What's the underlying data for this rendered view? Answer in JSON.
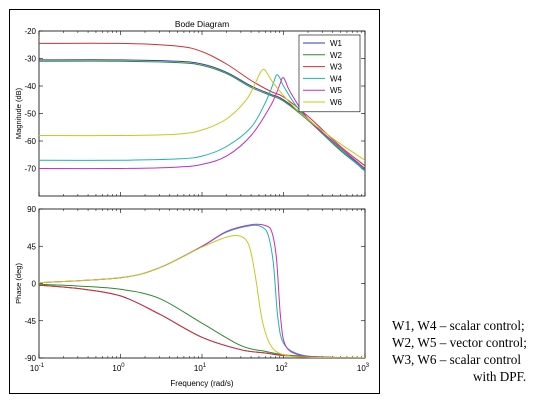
{
  "chart_data": [
    {
      "type": "line",
      "title": "Bode Diagram",
      "xlabel": "",
      "ylabel": "Magnitude (dB)",
      "xscale": "log",
      "xlim": [
        0.1,
        1000
      ],
      "ylim": [
        -80,
        -20
      ],
      "xticks": [
        0.1,
        1,
        10,
        100,
        1000
      ],
      "yticks": [
        -70,
        -60,
        -50,
        -40,
        -30,
        -20
      ],
      "ytick_labels": [
        "-70",
        "-60",
        "-50",
        "-40",
        "-30",
        "-20"
      ],
      "grid": false,
      "legend_position": "top-right",
      "legend": [
        "W1",
        "W2",
        "W3",
        "W4",
        "W5",
        "W6"
      ],
      "series": [
        {
          "name": "W1",
          "color": "#2b3fa8",
          "x": [
            0.1,
            1,
            5,
            10,
            20,
            40,
            70,
            100,
            200,
            500,
            1000
          ],
          "y": [
            -30.5,
            -30.5,
            -31,
            -32,
            -35,
            -40,
            -43,
            -45,
            -52,
            -63,
            -70
          ]
        },
        {
          "name": "W2",
          "color": "#2e8b2e",
          "x": [
            0.1,
            1,
            5,
            10,
            20,
            40,
            70,
            100,
            200,
            500,
            1000
          ],
          "y": [
            -31,
            -31,
            -31.5,
            -32.5,
            -35.5,
            -40.5,
            -43.5,
            -45.5,
            -52.5,
            -63.5,
            -70.5
          ]
        },
        {
          "name": "W3",
          "color": "#d43030",
          "x": [
            0.1,
            1,
            5,
            10,
            20,
            40,
            70,
            100,
            200,
            500,
            1000
          ],
          "y": [
            -24.5,
            -24.5,
            -25.5,
            -27.5,
            -32,
            -38,
            -42,
            -44,
            -51,
            -62,
            -69
          ]
        },
        {
          "name": "W4",
          "color": "#20b3b3",
          "x": [
            0.1,
            1,
            5,
            10,
            20,
            40,
            60,
            75,
            82,
            90,
            100,
            150,
            300,
            1000
          ],
          "y": [
            -67,
            -67,
            -66.5,
            -65.5,
            -62,
            -55,
            -46,
            -39,
            -36,
            -37,
            -40,
            -48,
            -57,
            -71
          ]
        },
        {
          "name": "W5",
          "color": "#c030c0",
          "x": [
            0.1,
            1,
            5,
            10,
            20,
            40,
            70,
            90,
            97,
            105,
            120,
            200,
            400,
            1000
          ],
          "y": [
            -70,
            -70,
            -69.5,
            -68.5,
            -65.5,
            -58,
            -47,
            -39.5,
            -37,
            -38,
            -42,
            -52,
            -60,
            -70
          ]
        },
        {
          "name": "W6",
          "color": "#c8c820",
          "x": [
            0.1,
            1,
            5,
            10,
            20,
            35,
            45,
            52,
            58,
            65,
            80,
            150,
            400,
            1000
          ],
          "y": [
            -58,
            -58,
            -57.5,
            -56,
            -52,
            -45,
            -39,
            -35,
            -34,
            -36,
            -40,
            -49,
            -59,
            -67
          ]
        }
      ]
    },
    {
      "type": "line",
      "xlabel": "Frequency  (rad/s)",
      "ylabel": "Phase (deg)",
      "xscale": "log",
      "xlim": [
        0.1,
        1000
      ],
      "ylim": [
        -90,
        90
      ],
      "xticks": [
        0.1,
        1,
        10,
        100,
        1000
      ],
      "yticks": [
        -90,
        -45,
        0,
        45,
        90
      ],
      "ytick_labels": [
        "-90",
        "-45",
        "0",
        "45",
        "90"
      ],
      "grid": false,
      "series": [
        {
          "name": "W1",
          "color": "#2b3fa8",
          "x": [
            0.1,
            0.3,
            1,
            3,
            10,
            30,
            60,
            100,
            200,
            500,
            1000
          ],
          "y": [
            -2,
            -6,
            -15,
            -37,
            -65,
            -80,
            -84,
            -87,
            -88.5,
            -89.5,
            -90
          ]
        },
        {
          "name": "W2",
          "color": "#2e8b2e",
          "x": [
            0.1,
            0.3,
            1,
            3,
            10,
            30,
            60,
            100,
            200,
            500,
            1000
          ],
          "y": [
            -1,
            -3,
            -7,
            -18,
            -48,
            -75,
            -82,
            -86,
            -88,
            -89.5,
            -90
          ]
        },
        {
          "name": "W3",
          "color": "#d43030",
          "x": [
            0.1,
            0.3,
            1,
            3,
            10,
            30,
            60,
            100,
            200,
            500,
            1000
          ],
          "y": [
            -2,
            -6,
            -15,
            -37,
            -65,
            -80,
            -84,
            -87,
            -88.5,
            -89.5,
            -90
          ]
        },
        {
          "name": "W4",
          "color": "#20b3b3",
          "x": [
            0.1,
            1,
            3,
            10,
            20,
            40,
            55,
            65,
            75,
            85,
            100,
            150,
            300,
            1000
          ],
          "y": [
            1,
            7,
            19,
            45,
            62,
            70,
            68,
            58,
            25,
            -40,
            -72,
            -85,
            -89,
            -90
          ]
        },
        {
          "name": "W5",
          "color": "#c030c0",
          "x": [
            0.1,
            1,
            3,
            10,
            20,
            40,
            60,
            72,
            82,
            92,
            105,
            150,
            300,
            1000
          ],
          "y": [
            1,
            7,
            19,
            45,
            63,
            71,
            70,
            62,
            30,
            -40,
            -74,
            -86,
            -89,
            -90
          ]
        },
        {
          "name": "W6",
          "color": "#c8c820",
          "x": [
            0.1,
            1,
            3,
            10,
            20,
            30,
            38,
            45,
            55,
            70,
            100,
            200,
            1000
          ],
          "y": [
            1,
            7,
            19,
            44,
            56,
            57,
            45,
            10,
            -45,
            -75,
            -86,
            -89,
            -90
          ]
        }
      ]
    }
  ],
  "caption": [
    "W1, W4 – scalar control;",
    "W2, W5 – vector control;",
    "W3, W6 – scalar control",
    "with DPF."
  ]
}
